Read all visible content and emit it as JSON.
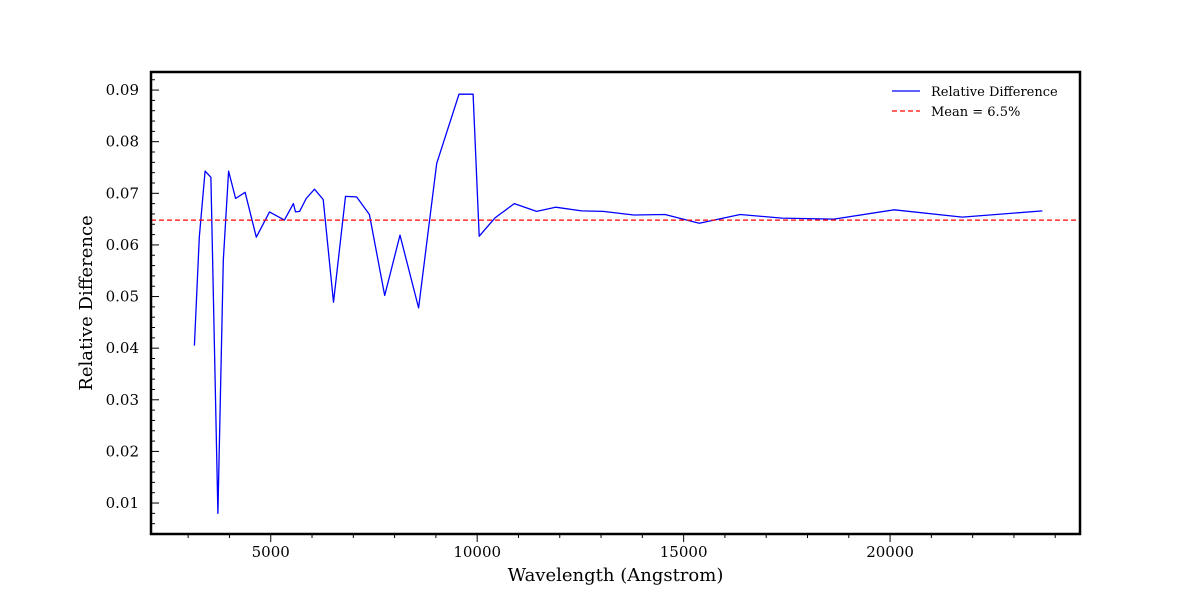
{
  "chart_data": {
    "type": "line",
    "title": "",
    "xlabel": "Wavelength (Angstrom)",
    "ylabel": "Relative Difference",
    "xlim": [
      2100,
      24600
    ],
    "ylim": [
      0.004,
      0.0935
    ],
    "x_major_ticks": [
      5000,
      10000,
      15000,
      20000
    ],
    "x_minor_ticks": [
      3000,
      4000,
      6000,
      7000,
      8000,
      9000,
      11000,
      12000,
      13000,
      14000,
      16000,
      17000,
      18000,
      19000,
      21000,
      22000,
      23000,
      24000
    ],
    "x_tick_labels": [
      "5000",
      "10000",
      "15000",
      "20000"
    ],
    "y_major_ticks": [
      0.01,
      0.02,
      0.03,
      0.04,
      0.05,
      0.06,
      0.07,
      0.08,
      0.09
    ],
    "y_tick_labels": [
      "0.01",
      "0.02",
      "0.03",
      "0.04",
      "0.05",
      "0.06",
      "0.07",
      "0.08",
      "0.09"
    ],
    "grid": false,
    "legend_position": "top-right",
    "series": [
      {
        "name": "Relative Difference",
        "color": "#0000ff",
        "style": "solid",
        "x": [
          3150,
          3270,
          3410,
          3550,
          3720,
          3850,
          3980,
          4150,
          4380,
          4650,
          4970,
          5330,
          5550,
          5600,
          5700,
          5860,
          6060,
          6270,
          6520,
          6810,
          7080,
          7390,
          7760,
          8130,
          8580,
          9020,
          9560,
          9900,
          10050,
          10440,
          10900,
          11440,
          11900,
          12530,
          13050,
          13790,
          14550,
          15380,
          16370,
          17380,
          18640,
          20100,
          21750,
          23690
        ],
        "y": [
          0.0405,
          0.0615,
          0.0743,
          0.0731,
          0.008,
          0.057,
          0.0743,
          0.069,
          0.0702,
          0.0615,
          0.0664,
          0.0648,
          0.068,
          0.0664,
          0.0665,
          0.069,
          0.0708,
          0.0688,
          0.0489,
          0.0694,
          0.0693,
          0.0659,
          0.0502,
          0.0619,
          0.0478,
          0.0758,
          0.0892,
          0.0892,
          0.0617,
          0.0653,
          0.068,
          0.0665,
          0.0673,
          0.0666,
          0.0665,
          0.0658,
          0.0659,
          0.0642,
          0.0659,
          0.0652,
          0.065,
          0.0668,
          0.0654,
          0.0666
        ]
      },
      {
        "name": "Mean = 6.5%",
        "color": "#ff0000",
        "style": "dashed",
        "x": [
          2100,
          24600
        ],
        "y": [
          0.0648,
          0.0648
        ]
      }
    ]
  }
}
